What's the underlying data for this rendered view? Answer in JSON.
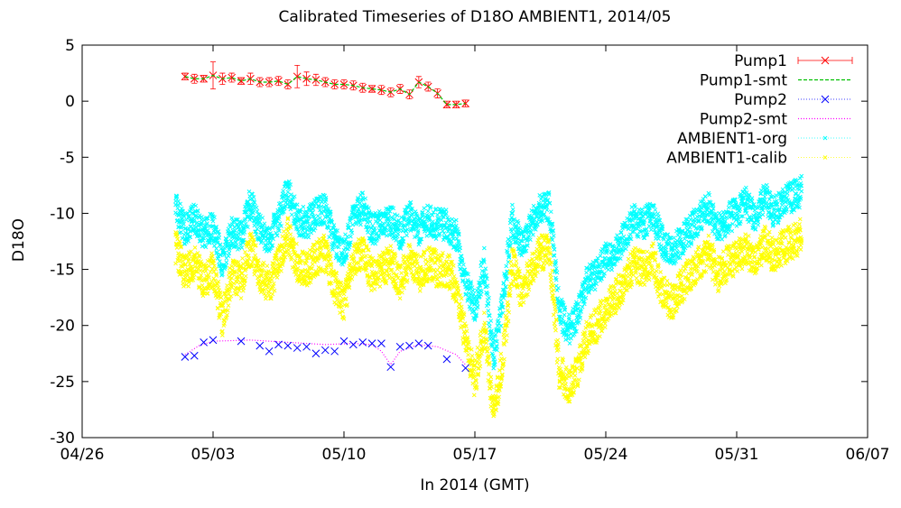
{
  "chart_data": {
    "type": "line",
    "title": "Calibrated Timeseries of D18O AMBIENT1, 2014/05",
    "xlabel": "In 2014 (GMT)",
    "ylabel": "D18O",
    "xlim": [
      "2014-04-26",
      "2014-06-07"
    ],
    "ylim": [
      -30,
      5
    ],
    "x_ticks": [
      {
        "value": "2014-04-26",
        "label": "04/26"
      },
      {
        "value": "2014-05-03",
        "label": "05/03"
      },
      {
        "value": "2014-05-10",
        "label": "05/10"
      },
      {
        "value": "2014-05-17",
        "label": "05/17"
      },
      {
        "value": "2014-05-24",
        "label": "05/24"
      },
      {
        "value": "2014-05-31",
        "label": "05/31"
      },
      {
        "value": "2014-06-07",
        "label": "06/07"
      }
    ],
    "y_ticks": [
      {
        "value": 5,
        "label": "5"
      },
      {
        "value": 0,
        "label": "0"
      },
      {
        "value": -5,
        "label": "-5"
      },
      {
        "value": -10,
        "label": "-10"
      },
      {
        "value": -15,
        "label": "-15"
      },
      {
        "value": -20,
        "label": "-20"
      },
      {
        "value": -25,
        "label": "-25"
      },
      {
        "value": -30,
        "label": "-30"
      }
    ],
    "grid": false,
    "legend_position": "top-right",
    "series": [
      {
        "name": "Pump1",
        "style": "points-errorbars",
        "color": "#ff0000",
        "marker": "x",
        "x": [
          "2014-05-01 12:00",
          "2014-05-02 00:00",
          "2014-05-02 12:00",
          "2014-05-03 00:00",
          "2014-05-03 12:00",
          "2014-05-04 00:00",
          "2014-05-04 12:00",
          "2014-05-05 00:00",
          "2014-05-05 12:00",
          "2014-05-06 00:00",
          "2014-05-06 12:00",
          "2014-05-07 00:00",
          "2014-05-07 12:00",
          "2014-05-08 00:00",
          "2014-05-08 12:00",
          "2014-05-09 00:00",
          "2014-05-09 12:00",
          "2014-05-10 00:00",
          "2014-05-10 12:00",
          "2014-05-11 00:00",
          "2014-05-11 12:00",
          "2014-05-12 00:00",
          "2014-05-12 12:00",
          "2014-05-13 00:00",
          "2014-05-13 12:00",
          "2014-05-14 00:00",
          "2014-05-14 12:00",
          "2014-05-15 00:00",
          "2014-05-15 12:00",
          "2014-05-16 00:00",
          "2014-05-16 12:00"
        ],
        "y": [
          2.2,
          2.0,
          2.0,
          2.3,
          2.0,
          2.1,
          1.8,
          2.0,
          1.7,
          1.7,
          1.8,
          1.5,
          2.2,
          2.0,
          1.9,
          1.7,
          1.5,
          1.5,
          1.4,
          1.2,
          1.1,
          1.0,
          0.8,
          1.1,
          0.6,
          1.7,
          1.3,
          0.7,
          -0.3,
          -0.3,
          -0.2
        ],
        "error": [
          0.3,
          0.4,
          0.3,
          1.2,
          0.5,
          0.4,
          0.3,
          0.5,
          0.4,
          0.4,
          0.4,
          0.4,
          1.0,
          0.6,
          0.5,
          0.4,
          0.4,
          0.4,
          0.4,
          0.4,
          0.3,
          0.4,
          0.4,
          0.4,
          0.4,
          0.5,
          0.4,
          0.4,
          0.3,
          0.3,
          0.3
        ]
      },
      {
        "name": "Pump1-smt",
        "style": "line",
        "color": "#00c000",
        "dash": "dashed"
      },
      {
        "name": "Pump2",
        "style": "points",
        "color": "#0000ff",
        "marker": "x",
        "x": [
          "2014-05-01 12:00",
          "2014-05-02 00:00",
          "2014-05-02 12:00",
          "2014-05-03 00:00",
          "2014-05-04 12:00",
          "2014-05-05 12:00",
          "2014-05-06 00:00",
          "2014-05-06 12:00",
          "2014-05-07 00:00",
          "2014-05-07 12:00",
          "2014-05-08 00:00",
          "2014-05-08 12:00",
          "2014-05-09 00:00",
          "2014-05-09 12:00",
          "2014-05-10 00:00",
          "2014-05-10 12:00",
          "2014-05-11 00:00",
          "2014-05-11 12:00",
          "2014-05-12 00:00",
          "2014-05-12 12:00",
          "2014-05-13 00:00",
          "2014-05-13 12:00",
          "2014-05-14 00:00",
          "2014-05-14 12:00",
          "2014-05-15 12:00",
          "2014-05-16 12:00"
        ],
        "y": [
          -22.8,
          -22.7,
          -21.5,
          -21.3,
          -21.4,
          -21.8,
          -22.3,
          -21.7,
          -21.8,
          -22.0,
          -21.9,
          -22.5,
          -22.2,
          -22.3,
          -21.4,
          -21.7,
          -21.5,
          -21.6,
          -21.6,
          -23.7,
          -21.9,
          -21.8,
          -21.6,
          -21.8,
          -23.0,
          -23.8
        ]
      },
      {
        "name": "Pump2-smt",
        "style": "line",
        "color": "#ff00ff",
        "dash": "dotted",
        "x": [
          "2014-05-01 12:00",
          "2014-05-02 06:00",
          "2014-05-03 00:00",
          "2014-05-05 00:00",
          "2014-05-07 00:00",
          "2014-05-09 00:00",
          "2014-05-10 12:00",
          "2014-05-11 12:00",
          "2014-05-12 00:00",
          "2014-05-12 12:00",
          "2014-05-13 00:00",
          "2014-05-14 00:00",
          "2014-05-15 00:00",
          "2014-05-16 00:00",
          "2014-05-16 12:00"
        ],
        "y": [
          -22.6,
          -21.8,
          -21.4,
          -21.3,
          -21.5,
          -21.7,
          -21.6,
          -21.7,
          -22.3,
          -23.5,
          -22.3,
          -21.7,
          -21.9,
          -22.6,
          -23.5
        ]
      },
      {
        "name": "AMBIENT1-org",
        "style": "points",
        "color": "#00ffff",
        "marker": "x",
        "x": [
          "2014-05-01 00:00",
          "2014-05-01 12:00",
          "2014-05-02 00:00",
          "2014-05-02 12:00",
          "2014-05-03 00:00",
          "2014-05-03 12:00",
          "2014-05-04 00:00",
          "2014-05-04 12:00",
          "2014-05-05 00:00",
          "2014-05-05 12:00",
          "2014-05-06 00:00",
          "2014-05-06 12:00",
          "2014-05-07 00:00",
          "2014-05-07 12:00",
          "2014-05-08 00:00",
          "2014-05-08 12:00",
          "2014-05-09 00:00",
          "2014-05-09 12:00",
          "2014-05-10 00:00",
          "2014-05-10 12:00",
          "2014-05-11 00:00",
          "2014-05-11 12:00",
          "2014-05-12 00:00",
          "2014-05-12 12:00",
          "2014-05-13 00:00",
          "2014-05-13 12:00",
          "2014-05-14 00:00",
          "2014-05-14 12:00",
          "2014-05-15 00:00",
          "2014-05-15 12:00",
          "2014-05-16 00:00",
          "2014-05-16 12:00",
          "2014-05-17 00:00",
          "2014-05-17 12:00",
          "2014-05-18 00:00",
          "2014-05-18 12:00",
          "2014-05-19 00:00",
          "2014-05-19 12:00",
          "2014-05-20 00:00",
          "2014-05-20 12:00",
          "2014-05-21 00:00",
          "2014-05-21 12:00",
          "2014-05-22 00:00",
          "2014-05-22 12:00",
          "2014-05-23 00:00",
          "2014-05-23 12:00",
          "2014-05-24 00:00",
          "2014-05-24 12:00",
          "2014-05-25 00:00",
          "2014-05-25 12:00",
          "2014-05-26 00:00",
          "2014-05-26 12:00",
          "2014-05-27 00:00",
          "2014-05-27 12:00",
          "2014-05-28 00:00",
          "2014-05-28 12:00",
          "2014-05-29 00:00",
          "2014-05-29 12:00",
          "2014-05-30 00:00",
          "2014-05-30 12:00",
          "2014-05-31 00:00",
          "2014-05-31 12:00",
          "2014-06-01 00:00",
          "2014-06-01 12:00",
          "2014-06-02 00:00",
          "2014-06-02 12:00",
          "2014-06-03 00:00",
          "2014-06-03 12:00"
        ],
        "y": [
          -9.5,
          -11.5,
          -10.5,
          -12.0,
          -11.0,
          -14.5,
          -11.5,
          -12.0,
          -9.0,
          -11.5,
          -12.5,
          -10.5,
          -8.0,
          -10.5,
          -11.0,
          -10.0,
          -9.5,
          -12.5,
          -13.5,
          -10.5,
          -9.5,
          -11.5,
          -11.0,
          -10.5,
          -12.0,
          -10.0,
          -11.5,
          -10.5,
          -11.0,
          -11.0,
          -12.0,
          -16.0,
          -18.5,
          -14.5,
          -23.0,
          -17.5,
          -10.5,
          -13.0,
          -11.0,
          -9.5,
          -9.5,
          -18.5,
          -20.5,
          -19.0,
          -16.0,
          -15.5,
          -14.0,
          -13.5,
          -12.0,
          -10.5,
          -11.0,
          -10.0,
          -12.5,
          -13.5,
          -12.5,
          -11.5,
          -10.5,
          -9.5,
          -11.5,
          -10.5,
          -10.0,
          -9.0,
          -10.5,
          -8.5,
          -10.0,
          -9.0,
          -8.5,
          -8.0
        ],
        "band": 1.4
      },
      {
        "name": "AMBIENT1-calib",
        "style": "points",
        "color": "#ffff00",
        "marker": "x",
        "x": [
          "2014-05-01 00:00",
          "2014-05-01 12:00",
          "2014-05-02 00:00",
          "2014-05-02 12:00",
          "2014-05-03 00:00",
          "2014-05-03 12:00",
          "2014-05-04 00:00",
          "2014-05-04 12:00",
          "2014-05-05 00:00",
          "2014-05-05 12:00",
          "2014-05-06 00:00",
          "2014-05-06 12:00",
          "2014-05-07 00:00",
          "2014-05-07 12:00",
          "2014-05-08 00:00",
          "2014-05-08 12:00",
          "2014-05-09 00:00",
          "2014-05-09 12:00",
          "2014-05-10 00:00",
          "2014-05-10 12:00",
          "2014-05-11 00:00",
          "2014-05-11 12:00",
          "2014-05-12 00:00",
          "2014-05-12 12:00",
          "2014-05-13 00:00",
          "2014-05-13 12:00",
          "2014-05-14 00:00",
          "2014-05-14 12:00",
          "2014-05-15 00:00",
          "2014-05-15 12:00",
          "2014-05-16 00:00",
          "2014-05-16 12:00",
          "2014-05-17 00:00",
          "2014-05-17 12:00",
          "2014-05-18 00:00",
          "2014-05-18 12:00",
          "2014-05-19 00:00",
          "2014-05-19 12:00",
          "2014-05-20 00:00",
          "2014-05-20 12:00",
          "2014-05-21 00:00",
          "2014-05-21 12:00",
          "2014-05-22 00:00",
          "2014-05-22 12:00",
          "2014-05-23 00:00",
          "2014-05-23 12:00",
          "2014-05-24 00:00",
          "2014-05-24 12:00",
          "2014-05-25 00:00",
          "2014-05-25 12:00",
          "2014-05-26 00:00",
          "2014-05-26 12:00",
          "2014-05-27 00:00",
          "2014-05-27 12:00",
          "2014-05-28 00:00",
          "2014-05-28 12:00",
          "2014-05-29 00:00",
          "2014-05-29 12:00",
          "2014-05-30 00:00",
          "2014-05-30 12:00",
          "2014-05-31 00:00",
          "2014-05-31 12:00",
          "2014-06-01 00:00",
          "2014-06-01 12:00",
          "2014-06-02 00:00",
          "2014-06-02 12:00",
          "2014-06-03 00:00",
          "2014-06-03 12:00"
        ],
        "y": [
          -13.0,
          -15.5,
          -14.5,
          -16.0,
          -15.0,
          -19.5,
          -15.5,
          -16.0,
          -13.0,
          -15.5,
          -16.5,
          -14.5,
          -12.0,
          -14.5,
          -15.0,
          -14.0,
          -13.5,
          -16.5,
          -18.0,
          -14.5,
          -13.5,
          -15.5,
          -15.0,
          -14.5,
          -16.0,
          -14.0,
          -15.5,
          -14.5,
          -15.0,
          -15.0,
          -16.5,
          -21.0,
          -25.0,
          -20.0,
          -28.0,
          -23.0,
          -14.5,
          -17.0,
          -15.0,
          -13.5,
          -13.5,
          -24.0,
          -25.5,
          -24.0,
          -21.0,
          -20.0,
          -18.5,
          -17.5,
          -16.0,
          -14.5,
          -15.0,
          -14.0,
          -17.0,
          -18.0,
          -16.5,
          -15.5,
          -14.5,
          -13.5,
          -15.5,
          -14.5,
          -14.0,
          -13.0,
          -14.5,
          -12.5,
          -14.0,
          -13.0,
          -12.5,
          -12.0
        ],
        "band": 1.6
      }
    ]
  }
}
